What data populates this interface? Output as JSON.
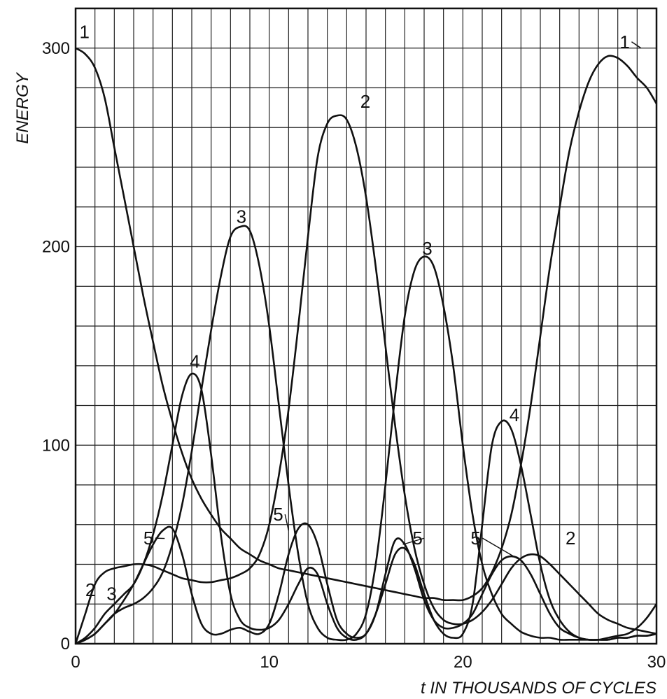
{
  "chart_data": {
    "type": "line",
    "title": "",
    "xlabel": "t IN THOUSANDS OF CYCLES",
    "ylabel": "ENERGY",
    "xlim": [
      0,
      30
    ],
    "ylim": [
      0,
      320
    ],
    "x_ticks": [
      {
        "value": 0,
        "label": "0"
      },
      {
        "value": 10,
        "label": "10"
      },
      {
        "value": 20,
        "label": "20"
      },
      {
        "value": 30,
        "label": "30"
      }
    ],
    "y_ticks": [
      {
        "value": 0,
        "label": "0"
      },
      {
        "value": 100,
        "label": "100"
      },
      {
        "value": 200,
        "label": "200"
      },
      {
        "value": 300,
        "label": "300"
      }
    ],
    "grid": true,
    "grid_x_step": 1,
    "grid_y_step": 20,
    "line_color": "#111111",
    "grid_color": "#222222",
    "series": [
      {
        "name": "1",
        "x": [
          0,
          0.5,
          1,
          1.5,
          2,
          2.5,
          3,
          3.5,
          4,
          4.5,
          5,
          5.5,
          6,
          6.5,
          7,
          7.5,
          8,
          8.5,
          9,
          9.5,
          10,
          10.5,
          11,
          11.5,
          12,
          12.5,
          13,
          13.5,
          14,
          14.5,
          15,
          15.5,
          16,
          16.5,
          17,
          17.5,
          18,
          18.5,
          19,
          19.5,
          20,
          20.5,
          21,
          21.5,
          22,
          22.5,
          23,
          23.5,
          24,
          24.5,
          25,
          25.5,
          26,
          26.5,
          27,
          27.5,
          28,
          28.5,
          29,
          29.5,
          30
        ],
        "values": [
          300,
          297,
          290,
          275,
          250,
          225,
          200,
          175,
          152,
          130,
          112,
          96,
          83,
          73,
          65,
          58,
          53,
          48,
          45,
          42,
          40,
          38,
          37,
          36,
          35,
          34,
          33,
          32,
          31,
          30,
          29,
          28,
          27,
          26,
          25,
          24,
          23,
          23,
          22,
          22,
          22,
          24,
          28,
          36,
          48,
          65,
          90,
          120,
          155,
          190,
          220,
          248,
          268,
          283,
          292,
          296,
          295,
          291,
          285,
          280,
          272
        ]
      },
      {
        "name": "2",
        "x": [
          0,
          0.5,
          1,
          1.5,
          2,
          2.5,
          3,
          3.5,
          4,
          4.5,
          5,
          5.5,
          6,
          6.5,
          7,
          7.5,
          8,
          8.5,
          9,
          9.5,
          10,
          10.5,
          11,
          11.5,
          12,
          12.5,
          13,
          13.5,
          14,
          14.5,
          15,
          15.5,
          16,
          16.5,
          17,
          17.5,
          18,
          18.5,
          19,
          19.5,
          20,
          20.5,
          21,
          21.5,
          22,
          22.5,
          23,
          23.5,
          24,
          24.5,
          25,
          25.5,
          26,
          26.5,
          27,
          27.5,
          28,
          28.5,
          29,
          29.5,
          30
        ],
        "values": [
          0,
          15,
          30,
          36,
          38,
          39,
          40,
          40,
          39,
          37,
          35,
          33,
          32,
          31,
          31,
          32,
          33,
          35,
          38,
          45,
          60,
          85,
          118,
          160,
          205,
          245,
          262,
          266,
          264,
          250,
          225,
          190,
          150,
          110,
          75,
          48,
          30,
          18,
          12,
          10,
          10,
          12,
          16,
          22,
          30,
          38,
          43,
          45,
          44,
          40,
          35,
          30,
          25,
          20,
          15,
          12,
          10,
          8,
          7,
          6,
          5
        ]
      },
      {
        "name": "3",
        "x": [
          0,
          0.5,
          1,
          1.5,
          2,
          2.5,
          3,
          3.5,
          4,
          4.5,
          5,
          5.5,
          6,
          6.5,
          7,
          7.5,
          8,
          8.5,
          9,
          9.5,
          10,
          10.5,
          11,
          11.5,
          12,
          12.5,
          13,
          13.5,
          14,
          14.5,
          15,
          15.5,
          16,
          16.5,
          17,
          17.5,
          18,
          18.5,
          19,
          19.5,
          20,
          20.5,
          21,
          21.5,
          22,
          22.5,
          23,
          23.5,
          24,
          24.5,
          25,
          25.5,
          26,
          26.5,
          27,
          27.5,
          28,
          28.5,
          29,
          29.5,
          30
        ],
        "values": [
          0,
          2,
          5,
          10,
          15,
          18,
          20,
          23,
          28,
          36,
          50,
          70,
          97,
          128,
          158,
          185,
          205,
          210,
          208,
          190,
          160,
          120,
          80,
          45,
          20,
          8,
          3,
          2,
          2,
          5,
          15,
          40,
          80,
          125,
          165,
          188,
          195,
          190,
          170,
          140,
          100,
          65,
          40,
          25,
          15,
          10,
          6,
          4,
          3,
          3,
          2,
          2,
          2,
          2,
          2,
          3,
          4,
          5,
          8,
          13,
          20
        ]
      },
      {
        "name": "4",
        "x": [
          0,
          0.5,
          1,
          1.5,
          2,
          2.5,
          3,
          3.5,
          4,
          4.5,
          5,
          5.5,
          6,
          6.5,
          7,
          7.5,
          8,
          8.5,
          9,
          9.5,
          10,
          10.5,
          11,
          11.5,
          12,
          12.5,
          13,
          13.5,
          14,
          14.5,
          15,
          15.5,
          16,
          16.5,
          17,
          17.5,
          18,
          18.5,
          19,
          19.5,
          20,
          20.5,
          21,
          21.5,
          22,
          22.5,
          23,
          23.5,
          24,
          24.5,
          25,
          25.5,
          26,
          26.5,
          27,
          27.5,
          28,
          28.5,
          29,
          29.5,
          30
        ],
        "values": [
          0,
          3,
          8,
          15,
          20,
          25,
          30,
          40,
          55,
          75,
          100,
          125,
          136,
          128,
          95,
          55,
          25,
          12,
          8,
          7,
          8,
          12,
          20,
          30,
          38,
          35,
          20,
          8,
          3,
          2,
          5,
          15,
          30,
          45,
          48,
          40,
          25,
          12,
          5,
          3,
          5,
          20,
          60,
          100,
          112,
          108,
          90,
          65,
          40,
          22,
          12,
          6,
          3,
          2,
          2,
          2,
          3,
          3,
          4,
          4,
          5
        ]
      },
      {
        "name": "5",
        "x": [
          0,
          0.5,
          1,
          1.5,
          2,
          2.5,
          3,
          3.5,
          4,
          4.5,
          5,
          5.5,
          6,
          6.5,
          7,
          7.5,
          8,
          8.5,
          9,
          9.5,
          10,
          10.5,
          11,
          11.5,
          12,
          12.5,
          13,
          13.5,
          14,
          14.5,
          15,
          15.5,
          16,
          16.5,
          17,
          17.5,
          18,
          18.5,
          19,
          19.5,
          20,
          20.5,
          21,
          21.5,
          22,
          22.5,
          23,
          23.5,
          24,
          24.5,
          25,
          25.5,
          26,
          26.5,
          27,
          27.5,
          28,
          28.5,
          29,
          29.5,
          30
        ],
        "values": [
          0,
          2,
          5,
          10,
          15,
          22,
          30,
          40,
          50,
          57,
          58,
          45,
          25,
          10,
          5,
          5,
          7,
          8,
          6,
          5,
          10,
          25,
          45,
          58,
          60,
          50,
          30,
          12,
          5,
          3,
          5,
          15,
          35,
          52,
          50,
          38,
          22,
          12,
          8,
          8,
          10,
          15,
          25,
          35,
          42,
          44,
          42,
          35,
          25,
          15,
          8,
          5,
          3,
          2,
          2,
          2,
          3,
          3,
          4,
          4,
          5
        ]
      }
    ],
    "annotations": [
      {
        "text": "1",
        "x": 0.2,
        "y": 305,
        "kind": "curve-label"
      },
      {
        "text": "1",
        "x": 28.1,
        "y": 300,
        "kind": "curve-label",
        "leader_to": [
          29.2,
          300
        ]
      },
      {
        "text": "2",
        "x": 14.7,
        "y": 270,
        "kind": "curve-label"
      },
      {
        "text": "2",
        "x": 0.5,
        "y": 24,
        "kind": "curve-label"
      },
      {
        "text": "2",
        "x": 25.3,
        "y": 50,
        "kind": "curve-label"
      },
      {
        "text": "3",
        "x": 8.3,
        "y": 212,
        "kind": "curve-label"
      },
      {
        "text": "3",
        "x": 17.9,
        "y": 196,
        "kind": "curve-label"
      },
      {
        "text": "3",
        "x": 1.6,
        "y": 22,
        "kind": "curve-label"
      },
      {
        "text": "4",
        "x": 5.9,
        "y": 139,
        "kind": "curve-label"
      },
      {
        "text": "4",
        "x": 22.4,
        "y": 112,
        "kind": "curve-label"
      },
      {
        "text": "5",
        "x": 3.5,
        "y": 50,
        "kind": "curve-label",
        "leader_to": [
          4.6,
          53
        ]
      },
      {
        "text": "5",
        "x": 10.2,
        "y": 62,
        "kind": "curve-label",
        "leader_to": [
          11.0,
          57
        ]
      },
      {
        "text": "5",
        "x": 17.4,
        "y": 50,
        "kind": "curve-label",
        "leader_to": [
          16.9,
          50
        ]
      },
      {
        "text": "5",
        "x": 20.4,
        "y": 50,
        "kind": "curve-label",
        "leader_to": [
          22.8,
          43
        ]
      }
    ]
  }
}
